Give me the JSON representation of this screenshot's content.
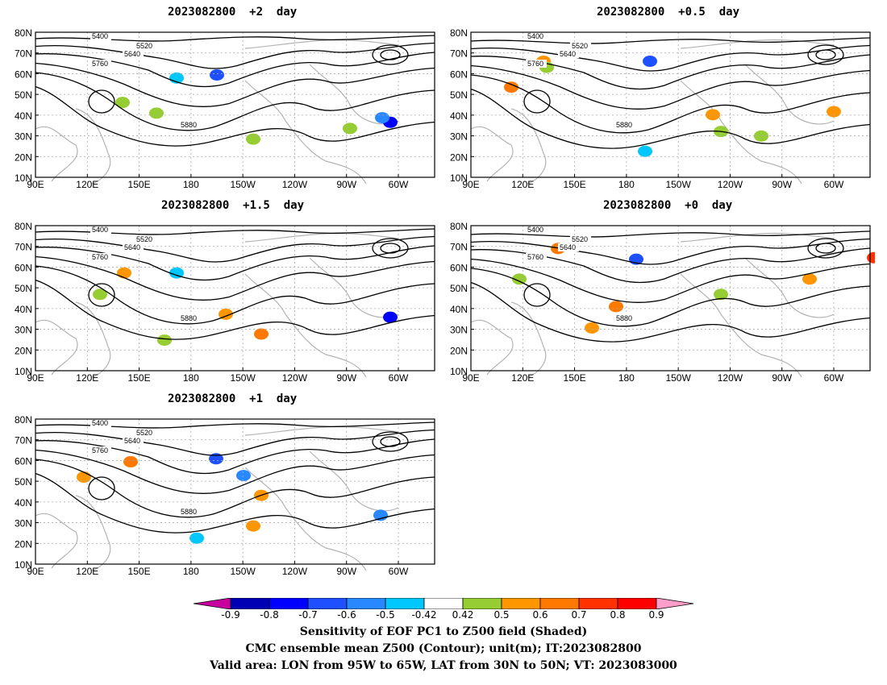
{
  "panels": [
    {
      "title": "2023082800  +2  day",
      "contours": [
        {
          "label": "5400"
        },
        {
          "label": "5520"
        },
        {
          "label": "5640"
        },
        {
          "label": "5760"
        },
        {
          "label": "5880"
        }
      ]
    },
    {
      "title": "2023082800  +0.5  day",
      "contours": [
        {
          "label": "5400"
        },
        {
          "label": "5520"
        },
        {
          "label": "5640"
        },
        {
          "label": "5760"
        },
        {
          "label": "5880"
        }
      ]
    },
    {
      "title": "2023082800  +1.5  day",
      "contours": [
        {
          "label": "5400"
        },
        {
          "label": "5520"
        },
        {
          "label": "5640"
        },
        {
          "label": "5760"
        },
        {
          "label": "5880"
        }
      ]
    },
    {
      "title": "2023082800  +0  day",
      "contours": [
        {
          "label": "5400"
        },
        {
          "label": "5520"
        },
        {
          "label": "5640"
        },
        {
          "label": "5760"
        },
        {
          "label": "5880"
        }
      ]
    },
    {
      "title": "2023082800  +1  day",
      "contours": [
        {
          "label": "5400"
        },
        {
          "label": "5520"
        },
        {
          "label": "5640"
        },
        {
          "label": "5760"
        },
        {
          "label": "5880"
        }
      ]
    }
  ],
  "axes": {
    "lat_labels": [
      "80N",
      "70N",
      "60N",
      "50N",
      "40N",
      "30N",
      "20N",
      "10N"
    ],
    "lon_labels": [
      "90E",
      "120E",
      "150E",
      "180",
      "150W",
      "120W",
      "90W",
      "60W"
    ]
  },
  "colorbar": {
    "labels": [
      "-0.9",
      "-0.8",
      "-0.7",
      "-0.6",
      "-0.5",
      "-0.42",
      "0.42",
      "0.5",
      "0.6",
      "0.7",
      "0.8",
      "0.9"
    ],
    "colors": [
      "#c800a0",
      "#0000b4",
      "#0000ff",
      "#1e50ff",
      "#2888ff",
      "#00c8ff",
      "#ffffff",
      "#96cd32",
      "#ff9600",
      "#ff7800",
      "#ff3200",
      "#ff0000",
      "#ff9ec8"
    ]
  },
  "captions": {
    "line1": "Sensitivity of EOF PC1 to Z500 field (Shaded)",
    "line2": "CMC ensemble mean Z500 (Contour); unit(m); IT:2023082800",
    "line3": "Valid area: LON from 95W to 65W, LAT from 30N to 50N; VT: 2023083000"
  }
}
